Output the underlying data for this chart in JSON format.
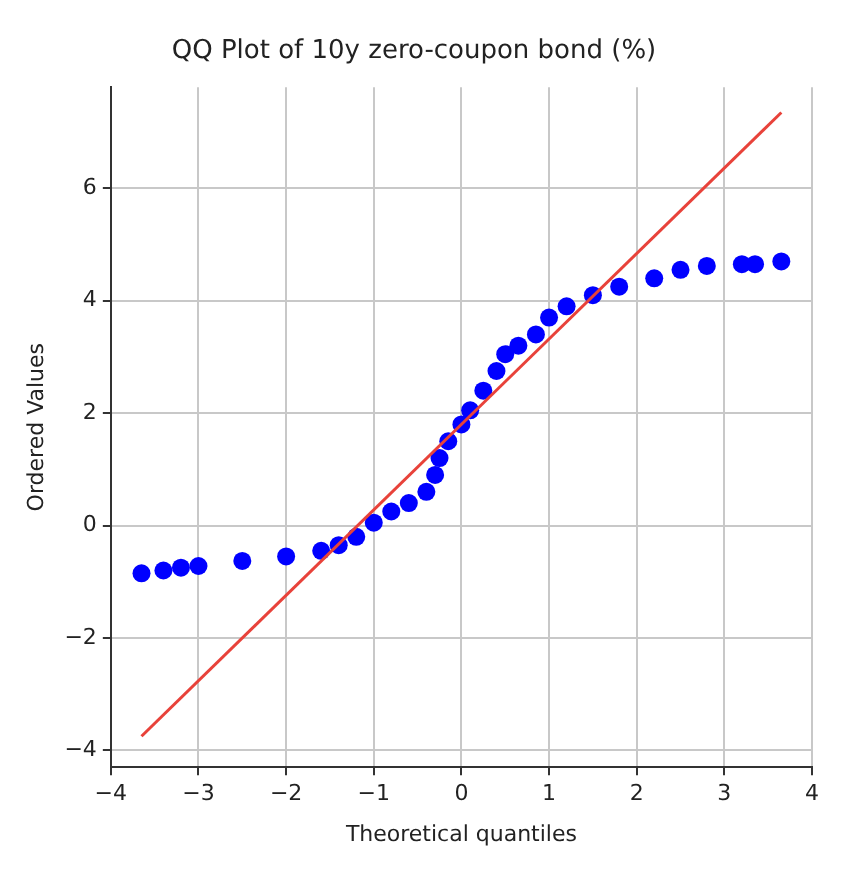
{
  "chart_data": {
    "type": "scatter",
    "title": "QQ Plot of 10y zero-coupon bond (%)",
    "xlabel": "Theoretical quantiles",
    "ylabel": "Ordered Values",
    "xlim": [
      -4,
      4
    ],
    "ylim": [
      -4.3,
      7.8
    ],
    "xticks": [
      -4,
      -3,
      -2,
      -1,
      0,
      1,
      2,
      3,
      4
    ],
    "yticks": [
      -4,
      -2,
      0,
      2,
      4,
      6
    ],
    "grid": true,
    "series": [
      {
        "marker": "circle",
        "color": "#0000ff",
        "x": [
          -3.65,
          -3.4,
          -3.2,
          -3,
          -2.5,
          -2,
          -1.6,
          -1.4,
          -1.2,
          -1,
          -0.8,
          -0.6,
          -0.4,
          -0.3,
          -0.25,
          -0.15,
          0,
          0.1,
          0.25,
          0.4,
          0.5,
          0.65,
          0.85,
          1,
          1.2,
          1.5,
          1.8,
          2.2,
          2.5,
          2.8,
          3.2,
          3.35,
          3.65
        ],
        "values": [
          -0.85,
          -0.8,
          -0.75,
          -0.72,
          -0.63,
          -0.55,
          -0.45,
          -0.35,
          -0.2,
          0.05,
          0.25,
          0.4,
          0.6,
          0.9,
          1.2,
          1.5,
          1.8,
          2.05,
          2.4,
          2.75,
          3.05,
          3.2,
          3.4,
          3.7,
          3.9,
          4.1,
          4.25,
          4.4,
          4.55,
          4.62,
          4.65,
          4.65,
          4.7
        ]
      },
      {
        "type": "line",
        "marker": "none",
        "color": "#e8423a",
        "x": [
          -3.65,
          3.65
        ],
        "values": [
          -3.75,
          7.35
        ]
      }
    ]
  }
}
